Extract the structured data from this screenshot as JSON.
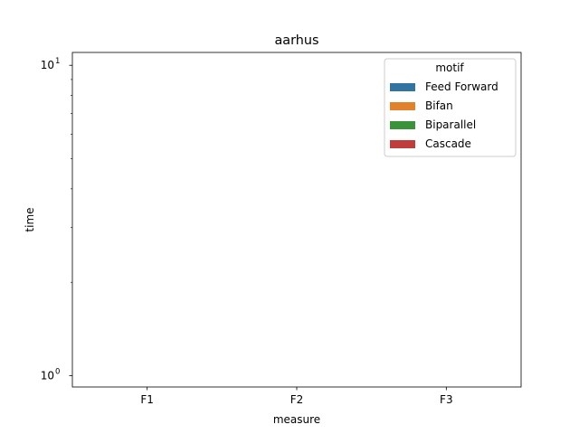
{
  "chart_data": {
    "type": "bar",
    "title": "aarhus",
    "xlabel": "measure",
    "ylabel": "time",
    "categories": [
      "F1",
      "F2",
      "F3"
    ],
    "yscale": "log",
    "ylim": [
      0.92,
      11
    ],
    "yticks": [
      {
        "value": 1,
        "base": "10",
        "exp": "0"
      },
      {
        "value": 10,
        "base": "10",
        "exp": "1"
      }
    ],
    "series": [
      {
        "name": "Feed Forward",
        "values": [
          null,
          null,
          null
        ]
      },
      {
        "name": "Bifan",
        "values": [
          null,
          null,
          null
        ]
      },
      {
        "name": "Biparallel",
        "values": [
          null,
          null,
          null
        ]
      },
      {
        "name": "Cascade",
        "values": [
          null,
          null,
          null
        ]
      }
    ],
    "legend": {
      "title": "motif",
      "placement": "top-right"
    },
    "grid": false
  },
  "colors": {
    "Feed Forward": "#3274a1",
    "Bifan": "#e1812c",
    "Biparallel": "#3a923a",
    "Cascade": "#c03d3e"
  }
}
